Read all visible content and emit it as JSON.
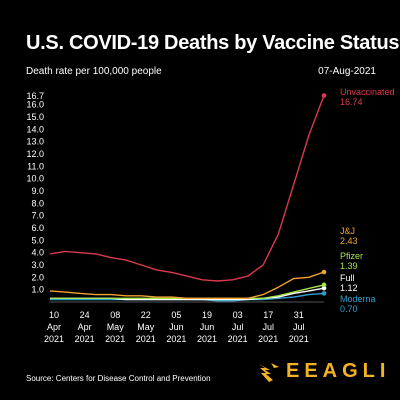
{
  "header": {
    "title": "U.S. COVID-19 Deaths by Vaccine Status",
    "subtitle": "Death rate per 100,000 people",
    "date": "07-Aug-2021"
  },
  "footer": {
    "source": "Source: Centers for Disease Control and Prevention",
    "brand": "EEAGLI"
  },
  "colors": {
    "unvaccinated": "#d93a4c",
    "jj": "#f0a232",
    "pfizer": "#a7e34c",
    "full": "#ffffff",
    "moderna": "#2e9fd0",
    "brand": "#f2b324"
  },
  "chart_data": {
    "type": "line",
    "ylim": [
      0,
      16.7
    ],
    "yticks": [
      "1.0",
      "2.0",
      "3.0",
      "4.0",
      "5.0",
      "6.0",
      "7.0",
      "8.0",
      "9.0",
      "10.0",
      "11.0",
      "12.0",
      "13.0",
      "14.0",
      "15.0",
      "16.0",
      "16.7"
    ],
    "ytick_values": [
      1,
      2,
      3,
      4,
      5,
      6,
      7,
      8,
      9,
      10,
      11,
      12,
      13,
      14,
      15,
      16,
      16.7
    ],
    "xticks": [
      {
        "day": "10",
        "month": "Apr",
        "year": "2021"
      },
      {
        "day": "24",
        "month": "Apr",
        "year": "2021"
      },
      {
        "day": "08",
        "month": "May",
        "year": "2021"
      },
      {
        "day": "22",
        "month": "May",
        "year": "2021"
      },
      {
        "day": "05",
        "month": "Jun",
        "year": "2021"
      },
      {
        "day": "19",
        "month": "Jun",
        "year": "2021"
      },
      {
        "day": "03",
        "month": "Jul",
        "year": "2021"
      },
      {
        "day": "17",
        "month": "Jul",
        "year": "2021"
      },
      {
        "day": "31",
        "month": "Jul",
        "year": "2021"
      }
    ],
    "x": [
      "2021-04-03",
      "2021-04-10",
      "2021-04-17",
      "2021-04-24",
      "2021-05-01",
      "2021-05-08",
      "2021-05-15",
      "2021-05-22",
      "2021-05-29",
      "2021-06-05",
      "2021-06-12",
      "2021-06-19",
      "2021-06-26",
      "2021-07-03",
      "2021-07-10",
      "2021-07-17",
      "2021-07-24",
      "2021-07-31",
      "2021-08-07"
    ],
    "x_end": "2021-08-07",
    "series": [
      {
        "name": "Unvaccinated",
        "value_label": "16.74",
        "color_key": "unvaccinated",
        "values": [
          3.9,
          4.1,
          4.0,
          3.9,
          3.6,
          3.4,
          3.0,
          2.6,
          2.4,
          2.1,
          1.8,
          1.7,
          1.8,
          2.1,
          3.0,
          5.5,
          9.5,
          13.5,
          16.74
        ]
      },
      {
        "name": "J&J",
        "value_label": "2.43",
        "color_key": "jj",
        "values": [
          0.9,
          0.8,
          0.7,
          0.6,
          0.6,
          0.5,
          0.5,
          0.4,
          0.4,
          0.3,
          0.3,
          0.3,
          0.3,
          0.3,
          0.6,
          1.2,
          1.9,
          2.0,
          2.43
        ]
      },
      {
        "name": "Pfizer",
        "value_label": "1.39",
        "color_key": "pfizer",
        "values": [
          0.3,
          0.3,
          0.3,
          0.3,
          0.3,
          0.3,
          0.3,
          0.3,
          0.3,
          0.3,
          0.3,
          0.3,
          0.3,
          0.3,
          0.3,
          0.5,
          0.8,
          1.1,
          1.39
        ]
      },
      {
        "name": "Full",
        "value_label": "1.12",
        "color_key": "full",
        "values": [
          0.3,
          0.3,
          0.3,
          0.3,
          0.3,
          0.2,
          0.2,
          0.2,
          0.2,
          0.2,
          0.2,
          0.2,
          0.2,
          0.2,
          0.3,
          0.4,
          0.7,
          0.9,
          1.12
        ]
      },
      {
        "name": "Moderna",
        "value_label": "0.70",
        "color_key": "moderna",
        "values": [
          0.2,
          0.2,
          0.2,
          0.2,
          0.2,
          0.2,
          0.2,
          0.2,
          0.2,
          0.2,
          0.2,
          0.1,
          0.1,
          0.2,
          0.2,
          0.3,
          0.4,
          0.6,
          0.7
        ]
      }
    ]
  }
}
